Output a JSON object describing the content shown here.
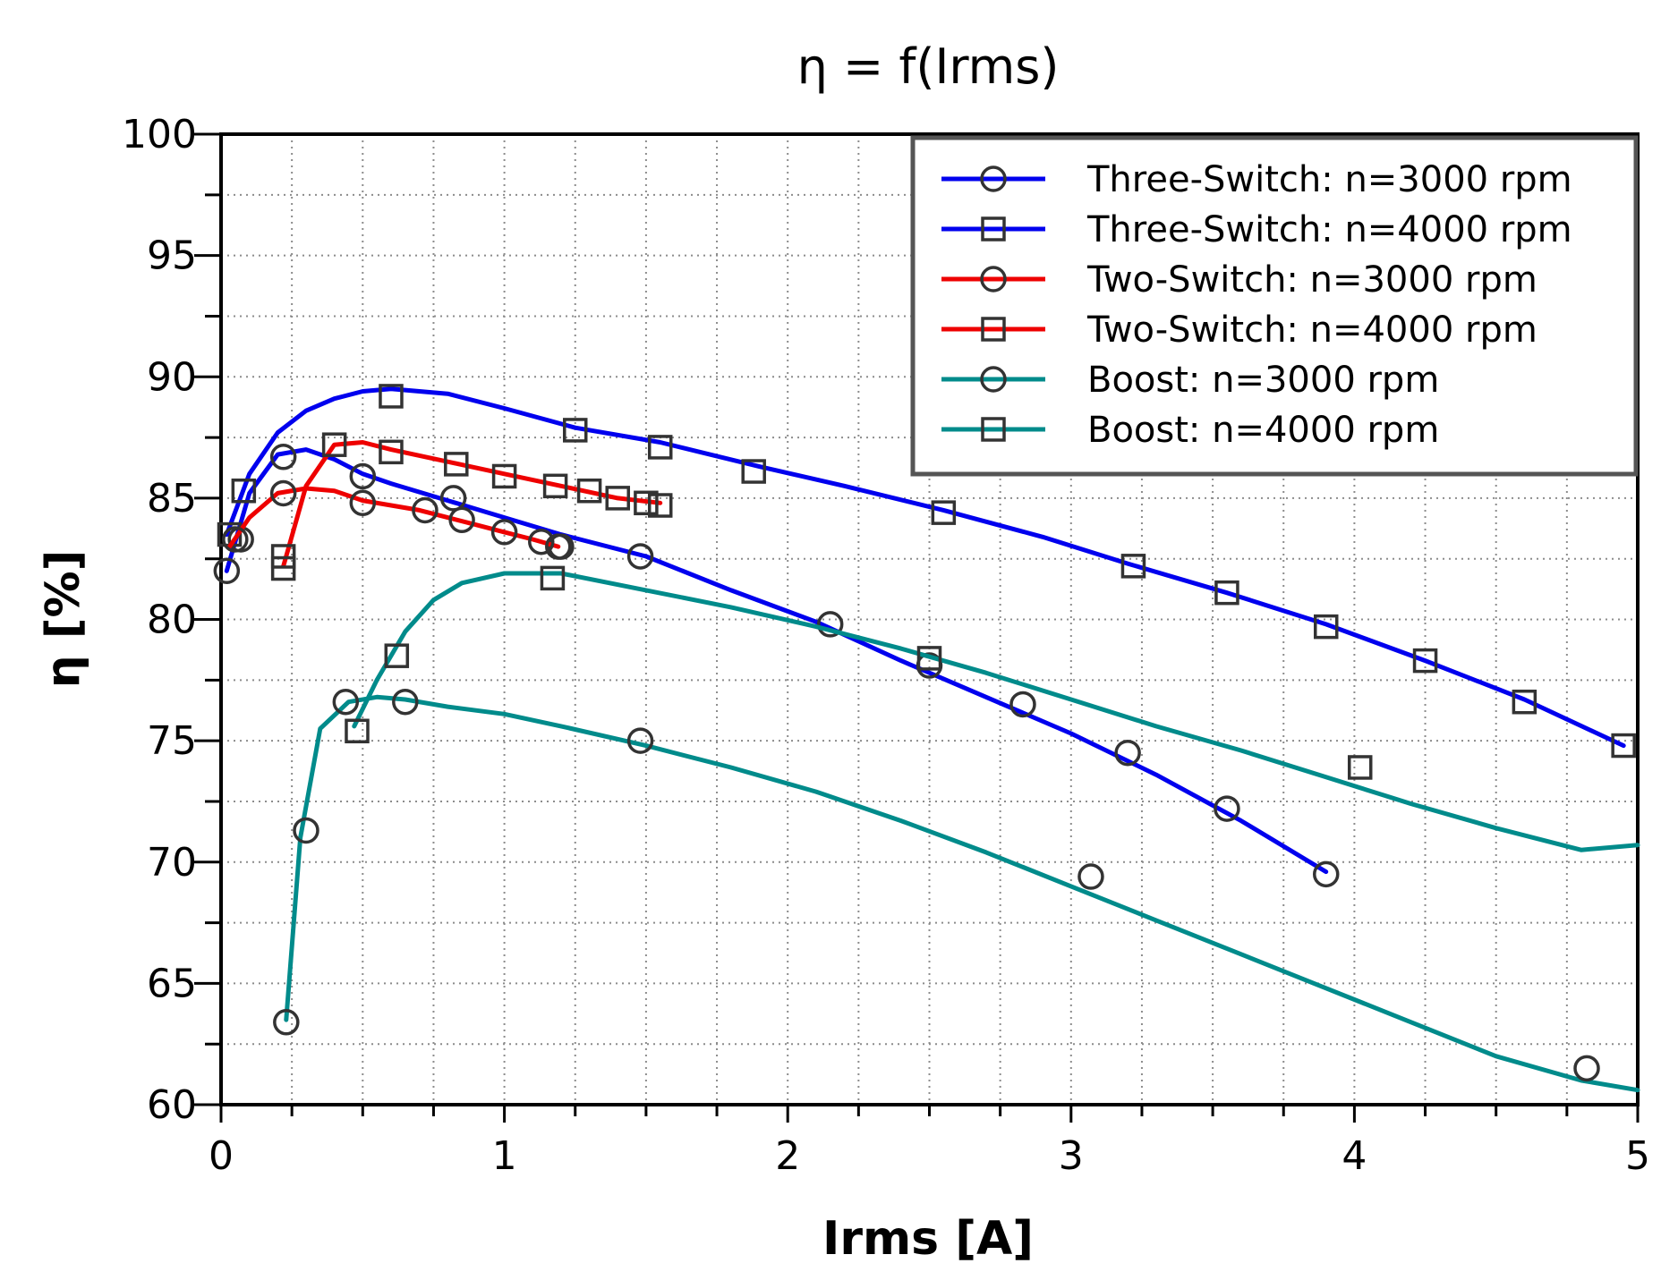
{
  "chart_data": {
    "type": "line",
    "title": "η = f(Irms)",
    "xlabel": "Irms [A]",
    "ylabel": "η [%]",
    "xlim": [
      0,
      5
    ],
    "ylim": [
      60,
      100
    ],
    "xticks": [
      "0",
      "1",
      "2",
      "3",
      "4",
      "5"
    ],
    "yticks": [
      "60",
      "65",
      "70",
      "75",
      "80",
      "85",
      "90",
      "95",
      "100"
    ],
    "grid": true,
    "legend_position": "top-right",
    "series": [
      {
        "name": "Three-Switch: n=3000 rpm",
        "color": "#0000ee",
        "marker": "circle",
        "line_x": [
          0.02,
          0.1,
          0.2,
          0.3,
          0.4,
          0.5,
          0.6,
          0.8,
          1.0,
          1.2,
          1.5,
          1.8,
          2.1,
          2.4,
          2.7,
          3.0,
          3.3,
          3.6,
          3.9
        ],
        "line_y": [
          82.0,
          85.2,
          86.8,
          87.0,
          86.6,
          86.0,
          85.6,
          84.9,
          84.2,
          83.5,
          82.6,
          81.2,
          79.9,
          78.3,
          76.8,
          75.3,
          73.6,
          71.7,
          69.6
        ],
        "marker_x": [
          0.02,
          0.07,
          0.22,
          0.5,
          0.82,
          1.2,
          1.48,
          2.15,
          2.5,
          2.83,
          3.2,
          3.55,
          3.9
        ],
        "marker_y": [
          82.0,
          83.3,
          86.7,
          85.9,
          85.0,
          83.0,
          82.6,
          79.8,
          78.1,
          76.5,
          74.5,
          72.2,
          69.5
        ]
      },
      {
        "name": "Three-Switch: n=4000 rpm",
        "color": "#0000ee",
        "marker": "square",
        "line_x": [
          0.02,
          0.1,
          0.2,
          0.3,
          0.4,
          0.5,
          0.6,
          0.8,
          1.0,
          1.25,
          1.55,
          1.9,
          2.2,
          2.55,
          2.9,
          3.2,
          3.55,
          3.9,
          4.25,
          4.6,
          4.95
        ],
        "line_y": [
          83.5,
          86.0,
          87.7,
          88.6,
          89.1,
          89.4,
          89.5,
          89.3,
          88.7,
          87.9,
          87.3,
          86.3,
          85.5,
          84.5,
          83.4,
          82.3,
          81.1,
          79.8,
          78.3,
          76.7,
          74.8
        ],
        "marker_x": [
          0.03,
          0.08,
          0.6,
          1.25,
          1.55,
          1.88,
          2.55,
          3.22,
          3.55,
          3.9,
          4.25,
          4.6,
          4.95
        ],
        "marker_y": [
          83.5,
          85.3,
          89.2,
          87.8,
          87.1,
          86.1,
          84.4,
          82.2,
          81.1,
          79.7,
          78.3,
          76.6,
          74.8
        ]
      },
      {
        "name": "Two-Switch: n=3000 rpm",
        "color": "#ee0000",
        "marker": "circle",
        "line_x": [
          0.03,
          0.1,
          0.2,
          0.3,
          0.4,
          0.5,
          0.6,
          0.7,
          0.8,
          0.9,
          1.0,
          1.1,
          1.19
        ],
        "line_y": [
          83.0,
          84.2,
          85.2,
          85.4,
          85.3,
          84.9,
          84.7,
          84.5,
          84.2,
          83.9,
          83.6,
          83.3,
          83.0
        ],
        "marker_x": [
          0.05,
          0.22,
          0.5,
          0.72,
          0.85,
          1.0,
          1.13,
          1.19
        ],
        "marker_y": [
          83.3,
          85.2,
          84.8,
          84.5,
          84.1,
          83.6,
          83.2,
          83.0
        ]
      },
      {
        "name": "Two-Switch: n=4000 rpm",
        "color": "#ee0000",
        "marker": "square",
        "line_x": [
          0.22,
          0.3,
          0.4,
          0.5,
          0.6,
          0.8,
          1.0,
          1.2,
          1.4,
          1.55
        ],
        "line_y": [
          82.2,
          85.5,
          87.2,
          87.3,
          87.0,
          86.5,
          86.0,
          85.5,
          85.0,
          84.8
        ],
        "marker_x": [
          0.22,
          0.22,
          0.4,
          0.6,
          0.83,
          1.0,
          1.18,
          1.3,
          1.4,
          1.5,
          1.55
        ],
        "marker_y": [
          82.1,
          82.6,
          87.2,
          86.9,
          86.4,
          85.9,
          85.5,
          85.3,
          85.0,
          84.8,
          84.7
        ]
      },
      {
        "name": "Boost: n=3000 rpm",
        "color": "#008b8b",
        "marker": "circle",
        "line_x": [
          0.23,
          0.28,
          0.35,
          0.45,
          0.55,
          0.65,
          0.8,
          1.0,
          1.2,
          1.5,
          1.8,
          2.1,
          2.4,
          2.7,
          3.0,
          3.3,
          3.6,
          3.9,
          4.2,
          4.5,
          4.8,
          5.0
        ],
        "line_y": [
          63.5,
          71.0,
          75.5,
          76.6,
          76.8,
          76.7,
          76.4,
          76.1,
          75.6,
          74.8,
          73.9,
          72.9,
          71.7,
          70.4,
          69.0,
          67.6,
          66.2,
          64.8,
          63.4,
          62.0,
          61.0,
          60.6
        ],
        "marker_x": [
          0.23,
          0.3,
          0.44,
          0.65,
          1.48,
          3.07,
          4.82
        ],
        "marker_y": [
          63.4,
          71.3,
          76.6,
          76.6,
          75.0,
          69.4,
          61.5
        ]
      },
      {
        "name": "Boost: n=4000 rpm",
        "color": "#008b8b",
        "marker": "square",
        "line_x": [
          0.47,
          0.55,
          0.65,
          0.75,
          0.85,
          1.0,
          1.2,
          1.5,
          1.8,
          2.1,
          2.4,
          2.7,
          3.0,
          3.3,
          3.6,
          3.9,
          4.2,
          4.5,
          4.8,
          5.0
        ],
        "line_y": [
          75.6,
          77.5,
          79.5,
          80.8,
          81.5,
          81.9,
          81.9,
          81.2,
          80.5,
          79.7,
          78.8,
          77.8,
          76.7,
          75.6,
          74.6,
          73.5,
          72.4,
          71.4,
          70.5,
          70.7
        ],
        "marker_x": [
          0.48,
          0.62,
          1.17,
          2.5,
          4.02
        ],
        "marker_y": [
          75.4,
          78.5,
          81.7,
          78.4,
          73.9
        ]
      }
    ]
  }
}
